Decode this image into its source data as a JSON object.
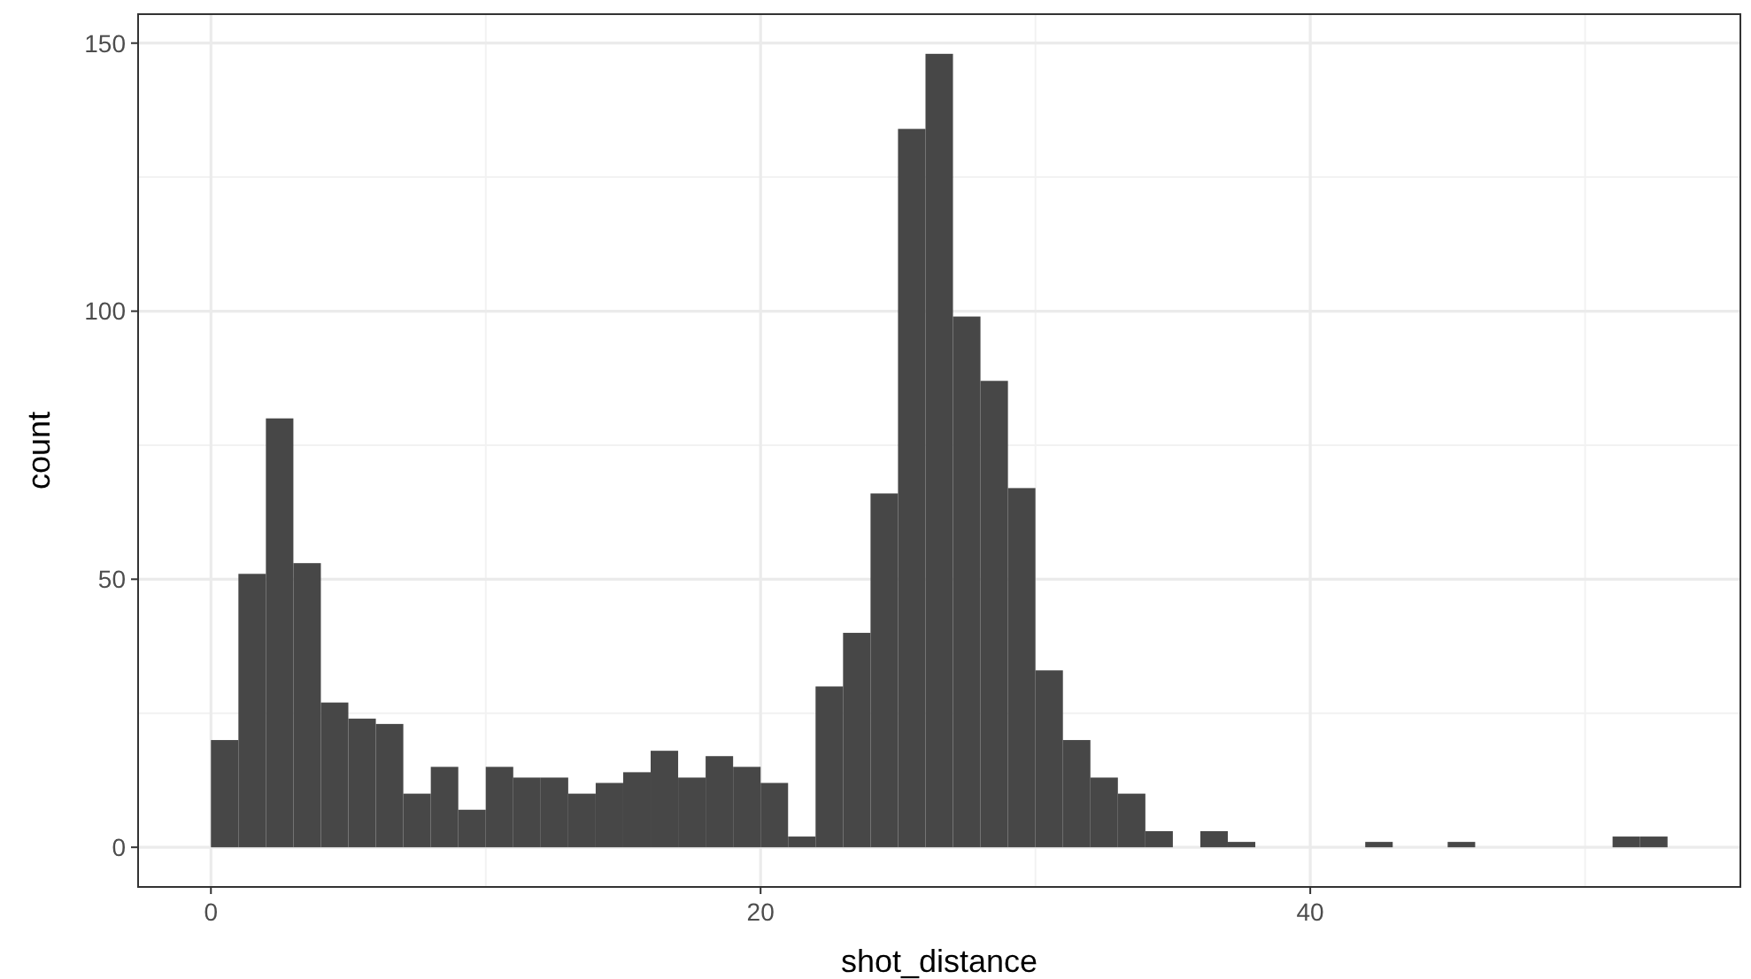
{
  "chart_data": {
    "type": "histogram",
    "xlabel": "shot_distance",
    "ylabel": "count",
    "color": "#474747",
    "bins": [
      0,
      1,
      2,
      3,
      4,
      5,
      6,
      7,
      8,
      9,
      10,
      11,
      12,
      13,
      14,
      15,
      16,
      17,
      18,
      19,
      20,
      21,
      22,
      23,
      24,
      25,
      26,
      27,
      28,
      29,
      30,
      31,
      32,
      33,
      34,
      35,
      36,
      37,
      38,
      39,
      40,
      41,
      42,
      43,
      44,
      45,
      46,
      47,
      48,
      49,
      50,
      51,
      52,
      53
    ],
    "values": [
      20,
      51,
      80,
      53,
      27,
      24,
      23,
      10,
      15,
      7,
      15,
      13,
      13,
      10,
      12,
      14,
      18,
      13,
      17,
      15,
      12,
      2,
      30,
      40,
      66,
      134,
      148,
      99,
      87,
      67,
      33,
      20,
      13,
      10,
      3,
      0,
      3,
      1,
      0,
      0,
      0,
      0,
      1,
      0,
      0,
      1,
      0,
      0,
      0,
      0,
      0,
      2,
      2
    ],
    "xlim": [
      -2.65,
      55.65
    ],
    "ylim": [
      -7.4,
      155.4
    ],
    "xticks": [
      0,
      20,
      40
    ],
    "yticks": [
      0,
      50,
      100,
      150
    ],
    "grid": true
  }
}
